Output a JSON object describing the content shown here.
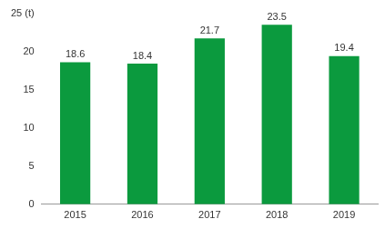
{
  "chart_data": {
    "type": "bar",
    "categories": [
      "2015",
      "2016",
      "2017",
      "2018",
      "2019"
    ],
    "values": [
      18.6,
      18.4,
      21.7,
      23.5,
      19.4
    ],
    "color": "#0b9a3e",
    "ylim": [
      0,
      25
    ],
    "yticks": [
      0,
      5,
      10,
      15,
      20,
      {
        "value": 25,
        "label": "25 (t)"
      }
    ],
    "grid": false,
    "data_labels": true
  }
}
